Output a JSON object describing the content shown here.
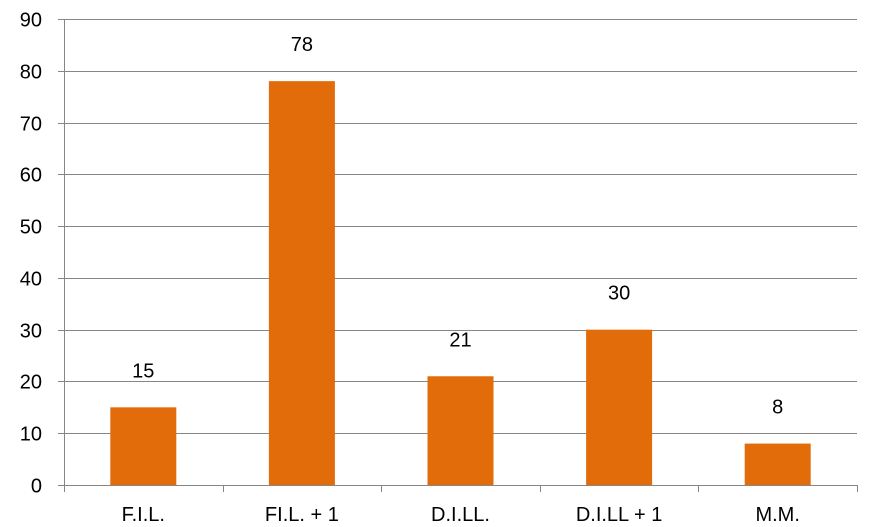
{
  "chart_data": {
    "type": "bar",
    "categories": [
      "F.I.L.",
      "FI.L. + 1",
      "D.I.LL.",
      "D.I.LL + 1",
      "M.M."
    ],
    "values": [
      15,
      78,
      21,
      30,
      8
    ],
    "data_labels": [
      "15",
      "78",
      "21",
      "30",
      "8"
    ],
    "title": "",
    "xlabel": "",
    "ylabel": "",
    "ylim": [
      0,
      90
    ],
    "yticks": [
      0,
      10,
      20,
      30,
      40,
      50,
      60,
      70,
      80,
      90
    ],
    "grid": "horizontal",
    "legend": "none",
    "colors": {
      "bar": "#E36C0A",
      "grid": "#868686",
      "axis": "#868686"
    }
  }
}
